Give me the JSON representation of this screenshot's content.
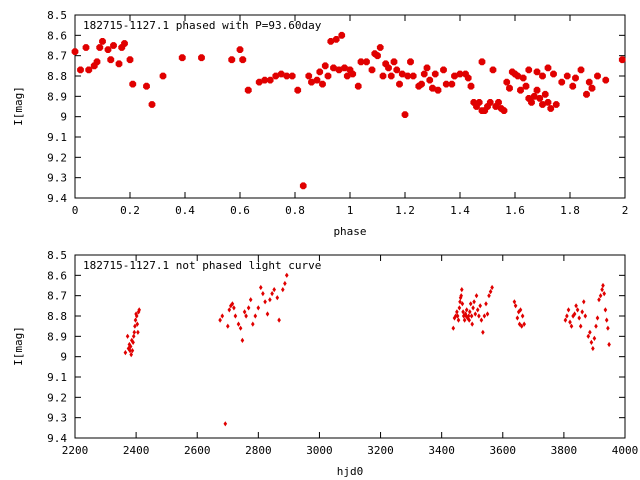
{
  "colors": {
    "marker": "#e00000",
    "axis": "#000000",
    "background": "#ffffff"
  },
  "chart_data": [
    {
      "type": "scatter",
      "title": "182715-1127.1 phased with P=93.60day",
      "xlabel": "phase",
      "ylabel": "I[mag]",
      "xlim": [
        0,
        2
      ],
      "ylim": [
        9.4,
        8.5
      ],
      "y_inverted": true,
      "xticks": [
        "0",
        "0.2",
        "0.4",
        "0.6",
        "0.8",
        "1",
        "1.2",
        "1.4",
        "1.6",
        "1.8",
        "2"
      ],
      "yticks": [
        "8.5",
        "8.6",
        "8.7",
        "8.8",
        "8.9",
        "9",
        "9.1",
        "9.2",
        "9.3",
        "9.4"
      ],
      "marker": "filled-octagon",
      "series": [
        {
          "points": [
            [
              0.0,
              8.68
            ],
            [
              0.02,
              8.77
            ],
            [
              0.04,
              8.66
            ],
            [
              0.05,
              8.77
            ],
            [
              0.07,
              8.75
            ],
            [
              0.08,
              8.73
            ],
            [
              0.09,
              8.66
            ],
            [
              0.1,
              8.63
            ],
            [
              0.12,
              8.67
            ],
            [
              0.13,
              8.72
            ],
            [
              0.14,
              8.65
            ],
            [
              0.16,
              8.74
            ],
            [
              0.17,
              8.66
            ],
            [
              0.18,
              8.64
            ],
            [
              0.2,
              8.72
            ],
            [
              0.21,
              8.84
            ],
            [
              0.26,
              8.85
            ],
            [
              0.28,
              8.94
            ],
            [
              0.32,
              8.8
            ],
            [
              0.39,
              8.71
            ],
            [
              0.46,
              8.71
            ],
            [
              0.57,
              8.72
            ],
            [
              0.6,
              8.67
            ],
            [
              0.61,
              8.72
            ],
            [
              0.63,
              8.87
            ],
            [
              0.67,
              8.83
            ],
            [
              0.69,
              8.82
            ],
            [
              0.71,
              8.82
            ],
            [
              0.73,
              8.8
            ],
            [
              0.75,
              8.79
            ],
            [
              0.77,
              8.8
            ],
            [
              0.79,
              8.8
            ],
            [
              0.81,
              8.87
            ],
            [
              0.83,
              9.34
            ],
            [
              0.85,
              8.8
            ],
            [
              0.86,
              8.83
            ],
            [
              0.88,
              8.82
            ],
            [
              0.89,
              8.78
            ],
            [
              0.9,
              8.84
            ],
            [
              0.91,
              8.75
            ],
            [
              0.92,
              8.8
            ],
            [
              0.93,
              8.63
            ],
            [
              0.94,
              8.76
            ],
            [
              0.95,
              8.62
            ],
            [
              0.96,
              8.77
            ],
            [
              0.97,
              8.6
            ],
            [
              0.98,
              8.76
            ],
            [
              0.99,
              8.8
            ],
            [
              1.0,
              8.77
            ],
            [
              1.01,
              8.79
            ],
            [
              1.03,
              8.85
            ],
            [
              1.04,
              8.73
            ],
            [
              1.06,
              8.73
            ],
            [
              1.08,
              8.77
            ],
            [
              1.09,
              8.69
            ],
            [
              1.1,
              8.7
            ],
            [
              1.11,
              8.66
            ],
            [
              1.12,
              8.8
            ],
            [
              1.13,
              8.74
            ],
            [
              1.14,
              8.76
            ],
            [
              1.15,
              8.8
            ],
            [
              1.16,
              8.73
            ],
            [
              1.17,
              8.77
            ],
            [
              1.18,
              8.84
            ],
            [
              1.19,
              8.79
            ],
            [
              1.2,
              8.99
            ],
            [
              1.21,
              8.8
            ],
            [
              1.22,
              8.73
            ],
            [
              1.23,
              8.8
            ],
            [
              1.25,
              8.85
            ],
            [
              1.26,
              8.84
            ],
            [
              1.27,
              8.79
            ],
            [
              1.28,
              8.76
            ],
            [
              1.29,
              8.82
            ],
            [
              1.3,
              8.86
            ],
            [
              1.31,
              8.79
            ],
            [
              1.32,
              8.87
            ],
            [
              1.34,
              8.77
            ],
            [
              1.35,
              8.84
            ],
            [
              1.37,
              8.84
            ],
            [
              1.38,
              8.8
            ],
            [
              1.4,
              8.79
            ],
            [
              1.42,
              8.79
            ],
            [
              1.43,
              8.81
            ],
            [
              1.44,
              8.85
            ],
            [
              1.45,
              8.93
            ],
            [
              1.46,
              8.95
            ],
            [
              1.47,
              8.93
            ],
            [
              1.48,
              8.97
            ],
            [
              1.48,
              8.73
            ],
            [
              1.49,
              8.97
            ],
            [
              1.5,
              8.95
            ],
            [
              1.51,
              8.93
            ],
            [
              1.52,
              8.77
            ],
            [
              1.53,
              8.95
            ],
            [
              1.54,
              8.93
            ],
            [
              1.55,
              8.96
            ],
            [
              1.56,
              8.97
            ],
            [
              1.57,
              8.83
            ],
            [
              1.58,
              8.86
            ],
            [
              1.59,
              8.78
            ],
            [
              1.6,
              8.79
            ],
            [
              1.61,
              8.8
            ],
            [
              1.62,
              8.87
            ],
            [
              1.63,
              8.81
            ],
            [
              1.64,
              8.85
            ],
            [
              1.65,
              8.91
            ],
            [
              1.65,
              8.77
            ],
            [
              1.66,
              8.93
            ],
            [
              1.67,
              8.9
            ],
            [
              1.68,
              8.87
            ],
            [
              1.68,
              8.78
            ],
            [
              1.69,
              8.91
            ],
            [
              1.7,
              8.94
            ],
            [
              1.7,
              8.8
            ],
            [
              1.71,
              8.89
            ],
            [
              1.72,
              8.93
            ],
            [
              1.72,
              8.76
            ],
            [
              1.73,
              8.96
            ],
            [
              1.74,
              8.79
            ],
            [
              1.75,
              8.94
            ],
            [
              1.77,
              8.83
            ],
            [
              1.79,
              8.8
            ],
            [
              1.81,
              8.85
            ],
            [
              1.82,
              8.81
            ],
            [
              1.84,
              8.77
            ],
            [
              1.86,
              8.89
            ],
            [
              1.87,
              8.83
            ],
            [
              1.88,
              8.86
            ],
            [
              1.9,
              8.8
            ],
            [
              1.93,
              8.82
            ],
            [
              1.99,
              8.72
            ]
          ]
        }
      ]
    },
    {
      "type": "scatter",
      "title": "182715-1127.1 not phased light curve",
      "xlabel": "hjd0",
      "ylabel": "I[mag]",
      "xlim": [
        2200,
        4000
      ],
      "ylim": [
        9.4,
        8.5
      ],
      "y_inverted": true,
      "xticks": [
        "2200",
        "2400",
        "2600",
        "2800",
        "3000",
        "3200",
        "3400",
        "3600",
        "3800",
        "4000"
      ],
      "yticks": [
        "8.5",
        "8.6",
        "8.7",
        "8.8",
        "8.9",
        "9",
        "9.1",
        "9.2",
        "9.3",
        "9.4"
      ],
      "marker": "small-diamond",
      "series": [
        {
          "points": [
            [
              2365,
              8.98
            ],
            [
              2372,
              8.9
            ],
            [
              2375,
              8.96
            ],
            [
              2378,
              8.94
            ],
            [
              2380,
              8.97
            ],
            [
              2382,
              8.95
            ],
            [
              2384,
              8.99
            ],
            [
              2386,
              8.92
            ],
            [
              2388,
              8.97
            ],
            [
              2390,
              8.93
            ],
            [
              2392,
              8.9
            ],
            [
              2394,
              8.88
            ],
            [
              2396,
              8.85
            ],
            [
              2398,
              8.82
            ],
            [
              2400,
              8.79
            ],
            [
              2402,
              8.8
            ],
            [
              2404,
              8.84
            ],
            [
              2406,
              8.88
            ],
            [
              2408,
              8.78
            ],
            [
              2410,
              8.77
            ],
            [
              2675,
              8.82
            ],
            [
              2682,
              8.8
            ],
            [
              2692,
              9.33
            ],
            [
              2700,
              8.85
            ],
            [
              2705,
              8.77
            ],
            [
              2710,
              8.75
            ],
            [
              2715,
              8.74
            ],
            [
              2720,
              8.76
            ],
            [
              2725,
              8.8
            ],
            [
              2735,
              8.84
            ],
            [
              2742,
              8.86
            ],
            [
              2748,
              8.92
            ],
            [
              2755,
              8.78
            ],
            [
              2760,
              8.8
            ],
            [
              2768,
              8.76
            ],
            [
              2775,
              8.72
            ],
            [
              2782,
              8.84
            ],
            [
              2790,
              8.8
            ],
            [
              2800,
              8.76
            ],
            [
              2808,
              8.66
            ],
            [
              2815,
              8.69
            ],
            [
              2822,
              8.73
            ],
            [
              2830,
              8.79
            ],
            [
              2838,
              8.72
            ],
            [
              2845,
              8.69
            ],
            [
              2852,
              8.67
            ],
            [
              2862,
              8.71
            ],
            [
              2868,
              8.82
            ],
            [
              2880,
              8.67
            ],
            [
              2887,
              8.64
            ],
            [
              2893,
              8.6
            ],
            [
              3438,
              8.86
            ],
            [
              3442,
              8.81
            ],
            [
              3446,
              8.8
            ],
            [
              3450,
              8.78
            ],
            [
              3452,
              8.8
            ],
            [
              3455,
              8.82
            ],
            [
              3458,
              8.76
            ],
            [
              3460,
              8.73
            ],
            [
              3462,
              8.71
            ],
            [
              3464,
              8.7
            ],
            [
              3466,
              8.67
            ],
            [
              3468,
              8.74
            ],
            [
              3470,
              8.78
            ],
            [
              3472,
              8.8
            ],
            [
              3475,
              8.82
            ],
            [
              3478,
              8.79
            ],
            [
              3480,
              8.8
            ],
            [
              3482,
              8.77
            ],
            [
              3485,
              8.81
            ],
            [
              3488,
              8.8
            ],
            [
              3490,
              8.82
            ],
            [
              3492,
              8.78
            ],
            [
              3495,
              8.74
            ],
            [
              3498,
              8.8
            ],
            [
              3500,
              8.84
            ],
            [
              3503,
              8.76
            ],
            [
              3506,
              8.73
            ],
            [
              3510,
              8.79
            ],
            [
              3514,
              8.7
            ],
            [
              3518,
              8.77
            ],
            [
              3522,
              8.8
            ],
            [
              3526,
              8.75
            ],
            [
              3530,
              8.82
            ],
            [
              3535,
              8.88
            ],
            [
              3540,
              8.8
            ],
            [
              3545,
              8.74
            ],
            [
              3550,
              8.79
            ],
            [
              3555,
              8.7
            ],
            [
              3560,
              8.68
            ],
            [
              3565,
              8.66
            ],
            [
              3638,
              8.73
            ],
            [
              3642,
              8.75
            ],
            [
              3648,
              8.81
            ],
            [
              3652,
              8.78
            ],
            [
              3655,
              8.84
            ],
            [
              3658,
              8.77
            ],
            [
              3662,
              8.85
            ],
            [
              3665,
              8.8
            ],
            [
              3670,
              8.84
            ],
            [
              3805,
              8.82
            ],
            [
              3810,
              8.8
            ],
            [
              3815,
              8.77
            ],
            [
              3820,
              8.83
            ],
            [
              3825,
              8.85
            ],
            [
              3830,
              8.8
            ],
            [
              3835,
              8.79
            ],
            [
              3840,
              8.75
            ],
            [
              3845,
              8.77
            ],
            [
              3850,
              8.81
            ],
            [
              3855,
              8.85
            ],
            [
              3860,
              8.78
            ],
            [
              3865,
              8.73
            ],
            [
              3870,
              8.8
            ],
            [
              3880,
              8.9
            ],
            [
              3885,
              8.88
            ],
            [
              3890,
              8.93
            ],
            [
              3895,
              8.96
            ],
            [
              3900,
              8.91
            ],
            [
              3905,
              8.85
            ],
            [
              3910,
              8.81
            ],
            [
              3915,
              8.72
            ],
            [
              3920,
              8.7
            ],
            [
              3925,
              8.67
            ],
            [
              3928,
              8.65
            ],
            [
              3932,
              8.69
            ],
            [
              3936,
              8.77
            ],
            [
              3940,
              8.82
            ],
            [
              3944,
              8.86
            ],
            [
              3948,
              8.94
            ]
          ]
        }
      ]
    }
  ]
}
